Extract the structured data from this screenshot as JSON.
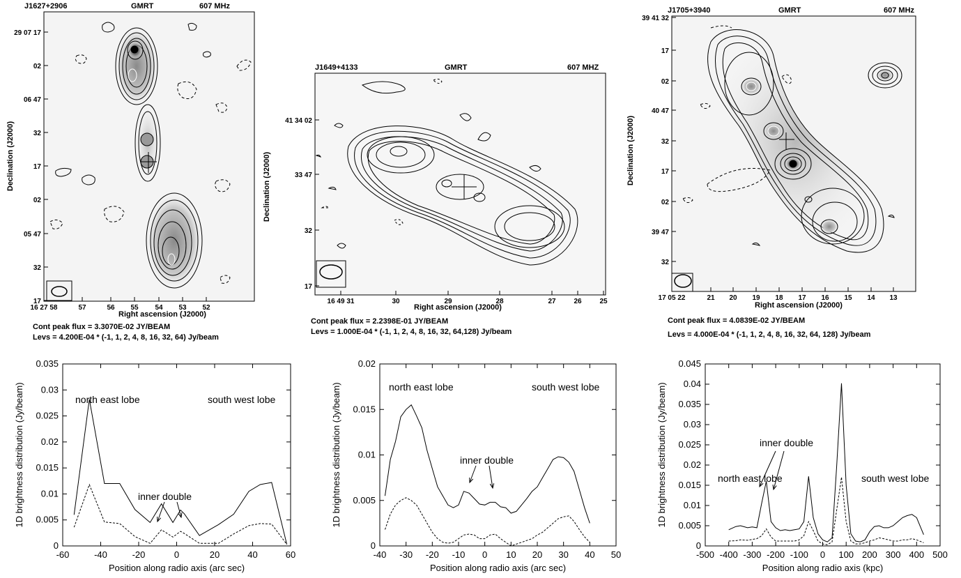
{
  "maps": [
    {
      "source": "J1627+2906",
      "telescope": "GMRT",
      "freq": "607 MHz",
      "xlabel": "Right ascension (J2000)",
      "ylabel": "Declination (J2000)",
      "yticks": [
        "29 07 17",
        "02",
        "06 47",
        "32",
        "17",
        "02",
        "05 47",
        "32",
        "17"
      ],
      "xticks": [
        "16 27 58",
        "57",
        "56",
        "55",
        "54",
        "53",
        "52"
      ],
      "peak": "Cont peak flux =  3.3070E-02 JY/BEAM",
      "levs": "Levs = 4.200E-04 * (-1, 1, 2, 4, 8, 16, 32, 64) Jy/beam"
    },
    {
      "source": "J1649+4133",
      "telescope": "GMRT",
      "freq": "607 MHZ",
      "xlabel": "Right ascension (J2000)",
      "ylabel": "Declination (J2000)",
      "yticks": [
        "41 34 02",
        "33 47",
        "32",
        "17"
      ],
      "xticks": [
        "16 49 31",
        "30",
        "29",
        "28",
        "27",
        "26",
        "25"
      ],
      "peak": "Cont peak flux =  2.2398E-01 JY/BEAM",
      "levs": "Levs = 1.000E-04 * (-1, 1, 2, 4, 8, 16, 32, 64,128) Jy/beam"
    },
    {
      "source": "J1705+3940",
      "telescope": "GMRT",
      "freq": "607 MHz",
      "xlabel": "Right ascension (J2000)",
      "ylabel": "Declination (J2000)",
      "yticks": [
        "39 41 32",
        "17",
        "02",
        "40 47",
        "32",
        "17",
        "02",
        "39 47",
        "32"
      ],
      "xticks": [
        "17 05 22",
        "21",
        "20",
        "19",
        "18",
        "17",
        "16",
        "15",
        "14",
        "13"
      ],
      "peak": "Cont peak flux =  4.0839E-02 JY/BEAM",
      "levs": "Levs = 4.000E-04 * (-1, 1, 2, 4, 8, 16, 32, 64, 128) Jy/beam"
    }
  ],
  "chart_data": [
    {
      "type": "line",
      "xlabel": "Position along radio axis (arc sec)",
      "ylabel": "1D brightness distribution (Jy/beam)",
      "xlim": [
        -60,
        60
      ],
      "ylim": [
        0,
        0.035
      ],
      "xticks": [
        "-60",
        "-40",
        "-20",
        "0",
        "20",
        "40",
        "60"
      ],
      "yticks": [
        "0",
        "0.005",
        "0.01",
        "0.015",
        "0.02",
        "0.025",
        "0.03",
        "0.035"
      ],
      "annotations": [
        "north east lobe",
        "south west lobe",
        "inner double"
      ],
      "series": [
        {
          "style": "solid",
          "x": [
            -54,
            -46,
            -38,
            -30,
            -22,
            -14,
            -8,
            -2,
            2,
            4,
            12,
            22,
            30,
            38,
            44,
            50,
            58
          ],
          "values": [
            0.006,
            0.0282,
            0.012,
            0.012,
            0.007,
            0.0045,
            0.0081,
            0.0045,
            0.0069,
            0.0062,
            0.002,
            0.0041,
            0.0061,
            0.0105,
            0.0118,
            0.0122,
            0.0003
          ]
        },
        {
          "style": "dashed",
          "x": [
            -54,
            -46,
            -38,
            -30,
            -22,
            -14,
            -8,
            -2,
            2,
            4,
            12,
            22,
            30,
            38,
            44,
            50,
            58
          ],
          "values": [
            0.0036,
            0.0118,
            0.0046,
            0.0043,
            0.0018,
            0.0005,
            0.0031,
            0.0017,
            0.0028,
            0.0024,
            0.0005,
            0.0005,
            0.0023,
            0.0039,
            0.0043,
            0.0042,
            0.0003
          ]
        }
      ]
    },
    {
      "type": "line",
      "xlabel": "Position along radio axis (arc sec)",
      "ylabel": "1D brightness distribution (Jy/beam)",
      "xlim": [
        -40,
        50
      ],
      "ylim": [
        0,
        0.02
      ],
      "xticks": [
        "-40",
        "-30",
        "-20",
        "-10",
        "0",
        "10",
        "20",
        "30",
        "40",
        "50"
      ],
      "yticks": [
        "0",
        "0.005",
        "0.01",
        "0.015",
        "0.02"
      ],
      "annotations": [
        "north east lobe",
        "south west lobe",
        "inner double"
      ],
      "series": [
        {
          "style": "solid",
          "x": [
            -38,
            -36,
            -34,
            -32,
            -30,
            -28,
            -26,
            -24,
            -22,
            -20,
            -18,
            -16,
            -14,
            -12,
            -10,
            -8,
            -6,
            -4,
            -2,
            0,
            2,
            4,
            6,
            8,
            10,
            12,
            14,
            16,
            18,
            20,
            22,
            24,
            26,
            28,
            30,
            32,
            34,
            36,
            38,
            40
          ],
          "values": [
            0.0055,
            0.0095,
            0.0115,
            0.0142,
            0.015,
            0.0155,
            0.0143,
            0.013,
            0.0105,
            0.0085,
            0.0065,
            0.0055,
            0.0045,
            0.0042,
            0.0045,
            0.006,
            0.0058,
            0.0052,
            0.0046,
            0.0045,
            0.0048,
            0.0048,
            0.0043,
            0.0042,
            0.0036,
            0.0038,
            0.0045,
            0.0052,
            0.006,
            0.0065,
            0.0075,
            0.0085,
            0.0095,
            0.0098,
            0.0097,
            0.0092,
            0.0082,
            0.0062,
            0.0042,
            0.0025
          ]
        },
        {
          "style": "dashed",
          "x": [
            -38,
            -36,
            -34,
            -32,
            -30,
            -28,
            -26,
            -24,
            -22,
            -20,
            -18,
            -16,
            -14,
            -12,
            -10,
            -8,
            -6,
            -4,
            -2,
            0,
            2,
            4,
            6,
            8,
            10,
            12,
            14,
            16,
            18,
            20,
            22,
            24,
            26,
            28,
            30,
            32,
            34,
            36,
            38,
            40
          ],
          "values": [
            0.0018,
            0.0035,
            0.0045,
            0.005,
            0.0053,
            0.005,
            0.0045,
            0.0035,
            0.0025,
            0.0015,
            0.0008,
            0.0004,
            0.0003,
            0.0004,
            0.0008,
            0.0012,
            0.0013,
            0.0012,
            0.0008,
            0.0008,
            0.0012,
            0.0013,
            0.0008,
            0.0004,
            0.0,
            0.0002,
            0.0004,
            0.0006,
            0.0008,
            0.0012,
            0.0015,
            0.002,
            0.0025,
            0.003,
            0.0032,
            0.0033,
            0.0027,
            0.0018,
            0.001,
            0.0004
          ]
        }
      ]
    },
    {
      "type": "line",
      "xlabel": "Position along radio axis (kpc)",
      "ylabel": "1D brightness distribution (Jy/beam)",
      "xlim": [
        -500,
        500
      ],
      "ylim": [
        0,
        0.045
      ],
      "xticks": [
        "-500",
        "-400",
        "-300",
        "-200",
        "-100",
        "0",
        "100",
        "200",
        "300",
        "400",
        "500"
      ],
      "yticks": [
        "0",
        "0.005",
        "0.01",
        "0.015",
        "0.02",
        "0.025",
        "0.03",
        "0.035",
        "0.04",
        "0.045"
      ],
      "annotations": [
        "north east lobe",
        "inner double",
        "south west lobe"
      ],
      "series": [
        {
          "style": "solid",
          "x": [
            -400,
            -370,
            -350,
            -320,
            -300,
            -280,
            -260,
            -240,
            -220,
            -200,
            -180,
            -160,
            -140,
            -120,
            -100,
            -80,
            -60,
            -40,
            -20,
            0,
            20,
            40,
            60,
            80,
            100,
            120,
            140,
            160,
            180,
            200,
            220,
            240,
            260,
            280,
            300,
            320,
            340,
            360,
            380,
            400,
            430
          ],
          "values": [
            0.004,
            0.0048,
            0.005,
            0.0045,
            0.0047,
            0.0045,
            0.0105,
            0.016,
            0.006,
            0.0045,
            0.0038,
            0.004,
            0.0038,
            0.004,
            0.0042,
            0.006,
            0.0172,
            0.007,
            0.003,
            0.0015,
            0.001,
            0.002,
            0.02,
            0.0402,
            0.015,
            0.003,
            0.0012,
            0.001,
            0.0015,
            0.0035,
            0.0048,
            0.005,
            0.0045,
            0.0045,
            0.005,
            0.006,
            0.007,
            0.0075,
            0.0078,
            0.007,
            0.0028
          ]
        },
        {
          "style": "dashed",
          "x": [
            -400,
            -370,
            -350,
            -320,
            -300,
            -280,
            -260,
            -240,
            -220,
            -200,
            -180,
            -160,
            -140,
            -120,
            -100,
            -80,
            -60,
            -40,
            -20,
            0,
            20,
            40,
            60,
            80,
            100,
            120,
            140,
            160,
            180,
            200,
            220,
            240,
            260,
            280,
            300,
            320,
            340,
            360,
            380,
            400,
            430
          ],
          "values": [
            0.0012,
            0.0013,
            0.0015,
            0.0014,
            0.0016,
            0.0018,
            0.0025,
            0.0042,
            0.0022,
            0.0012,
            0.0012,
            0.0012,
            0.0012,
            0.0012,
            0.0015,
            0.0025,
            0.006,
            0.0038,
            0.0012,
            0.0005,
            0.0003,
            0.001,
            0.009,
            0.017,
            0.006,
            0.0012,
            0.0005,
            0.0005,
            0.0008,
            0.0012,
            0.0015,
            0.002,
            0.0018,
            0.0015,
            0.0012,
            0.0012,
            0.0015,
            0.0015,
            0.0018,
            0.0015,
            0.0008
          ]
        }
      ]
    }
  ]
}
